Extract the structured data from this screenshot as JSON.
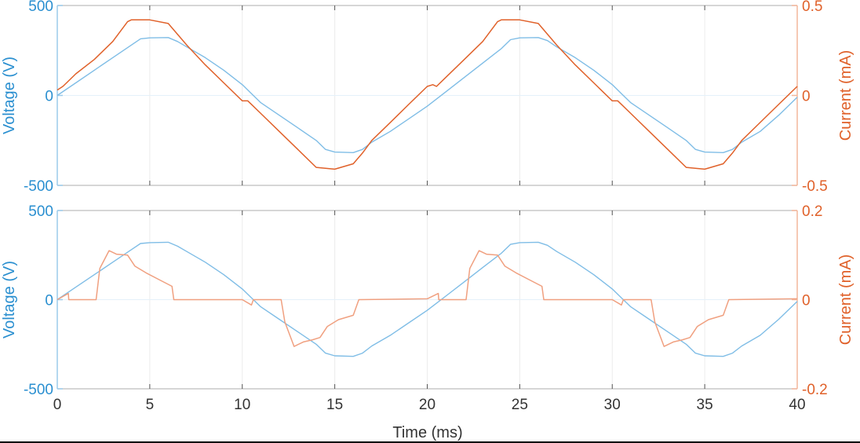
{
  "chart_data": [
    {
      "type": "line",
      "title": "",
      "xlabel": "",
      "ylabel_left": "Voltage (V)",
      "ylabel_right": "Current (mA)",
      "xlim": [
        0,
        40
      ],
      "ylim_left": [
        -500,
        500
      ],
      "ylim_right": [
        -0.5,
        0.5
      ],
      "xticks": [
        0,
        5,
        10,
        15,
        20,
        25,
        30,
        35,
        40
      ],
      "yticks_left": [
        -500,
        0,
        500
      ],
      "yticks_right": [
        -0.5,
        0,
        0.5
      ],
      "yticklabels_left": [
        "-500",
        "0",
        "500"
      ],
      "yticklabels_right": [
        "-0.5",
        "0",
        "0.5"
      ],
      "grid": true,
      "series": [
        {
          "name": "Voltage",
          "axis": "left",
          "color": "#7fbde6",
          "x": [
            0,
            1,
            2,
            3,
            4,
            4.5,
            5,
            6,
            6.5,
            7,
            8,
            9,
            10,
            10.5,
            11,
            12,
            13,
            14,
            14.5,
            15,
            16,
            16.5,
            17,
            18,
            19,
            20,
            21,
            22,
            23,
            24,
            24.5,
            25,
            26,
            26.5,
            27,
            28,
            29,
            30,
            30.5,
            31,
            32,
            33,
            34,
            34.5,
            35,
            36,
            36.5,
            37,
            38,
            39,
            40
          ],
          "values": [
            0,
            70,
            140,
            210,
            280,
            315,
            320,
            322,
            300,
            270,
            210,
            140,
            60,
            10,
            -40,
            -110,
            -180,
            -250,
            -300,
            -315,
            -318,
            -300,
            -260,
            -200,
            -130,
            -60,
            20,
            100,
            180,
            260,
            310,
            320,
            322,
            305,
            270,
            210,
            140,
            60,
            10,
            -40,
            -110,
            -180,
            -250,
            -300,
            -315,
            -318,
            -300,
            -260,
            -200,
            -110,
            -10
          ]
        },
        {
          "name": "Current",
          "axis": "right",
          "color": "#e0612a",
          "x": [
            0,
            0.3,
            0.5,
            1,
            2,
            3,
            3.8,
            4,
            5,
            6,
            7,
            8,
            9,
            10,
            10.3,
            10.5,
            11,
            12,
            13,
            14,
            15,
            16,
            16.5,
            17,
            18,
            19,
            20,
            20.3,
            20.5,
            21,
            22,
            23,
            23.8,
            24,
            25,
            26,
            27,
            28,
            29,
            30,
            30.3,
            30.5,
            31,
            32,
            33,
            34,
            35,
            36,
            36.5,
            37,
            38,
            39,
            40
          ],
          "values": [
            0.03,
            0.05,
            0.07,
            0.12,
            0.2,
            0.3,
            0.41,
            0.42,
            0.42,
            0.4,
            0.28,
            0.17,
            0.07,
            -0.03,
            -0.03,
            -0.05,
            -0.1,
            -0.2,
            -0.3,
            -0.4,
            -0.41,
            -0.38,
            -0.32,
            -0.25,
            -0.15,
            -0.05,
            0.05,
            0.06,
            0.05,
            0.1,
            0.2,
            0.3,
            0.41,
            0.42,
            0.42,
            0.4,
            0.28,
            0.17,
            0.07,
            -0.03,
            -0.03,
            -0.05,
            -0.1,
            -0.2,
            -0.3,
            -0.4,
            -0.41,
            -0.38,
            -0.32,
            -0.25,
            -0.15,
            -0.05,
            0.05
          ]
        }
      ]
    },
    {
      "type": "line",
      "title": "",
      "xlabel": "Time (ms)",
      "ylabel_left": "Voltage (V)",
      "ylabel_right": "Current (mA)",
      "xlim": [
        0,
        40
      ],
      "ylim_left": [
        -500,
        500
      ],
      "ylim_right": [
        -0.2,
        0.2
      ],
      "xticks": [
        0,
        5,
        10,
        15,
        20,
        25,
        30,
        35,
        40
      ],
      "xticklabels": [
        "0",
        "5",
        "10",
        "15",
        "20",
        "25",
        "30",
        "35",
        "40"
      ],
      "yticks_left": [
        -500,
        0,
        500
      ],
      "yticks_right": [
        -0.2,
        0,
        0.2
      ],
      "yticklabels_left": [
        "-500",
        "0",
        "500"
      ],
      "yticklabels_right": [
        "-0.2",
        "0",
        "0.2"
      ],
      "grid": true,
      "series": [
        {
          "name": "Voltage",
          "axis": "left",
          "color": "#7fbde6",
          "x": [
            0,
            1,
            2,
            3,
            4,
            4.5,
            5,
            6,
            6.5,
            7,
            8,
            9,
            10,
            10.5,
            11,
            12,
            13,
            14,
            14.5,
            15,
            16,
            16.5,
            17,
            18,
            19,
            20,
            21,
            22,
            23,
            24,
            24.5,
            25,
            26,
            26.5,
            27,
            28,
            29,
            30,
            30.5,
            31,
            32,
            33,
            34,
            34.5,
            35,
            36,
            36.5,
            37,
            38,
            39,
            40
          ],
          "values": [
            0,
            70,
            140,
            210,
            280,
            315,
            320,
            322,
            300,
            270,
            210,
            140,
            60,
            10,
            -40,
            -110,
            -180,
            -250,
            -300,
            -315,
            -318,
            -300,
            -260,
            -200,
            -130,
            -60,
            20,
            100,
            180,
            260,
            310,
            320,
            322,
            305,
            270,
            210,
            140,
            60,
            10,
            -40,
            -110,
            -180,
            -250,
            -300,
            -315,
            -318,
            -300,
            -260,
            -200,
            -110,
            -10
          ]
        },
        {
          "name": "Current",
          "axis": "right",
          "color": "#f0a080",
          "x": [
            0,
            0.6,
            0.62,
            2.1,
            2.3,
            2.8,
            3.2,
            3.8,
            4.2,
            4.8,
            5.5,
            6.2,
            6.3,
            10,
            10.5,
            10.6,
            12.1,
            12.3,
            12.8,
            13.3,
            13.8,
            14.2,
            14.6,
            15.2,
            16,
            16.3,
            20,
            20.6,
            20.62,
            22.1,
            22.3,
            22.8,
            23.2,
            23.8,
            24.2,
            24.8,
            25.5,
            26.2,
            26.3,
            30,
            30.5,
            30.6,
            32.1,
            32.3,
            32.8,
            33.3,
            33.8,
            34.2,
            34.6,
            35.2,
            36,
            36.3,
            40
          ],
          "values": [
            0,
            0.014,
            0,
            0,
            0.07,
            0.11,
            0.102,
            0.1,
            0.075,
            0.06,
            0.045,
            0.03,
            0,
            0,
            -0.012,
            0,
            0,
            -0.05,
            -0.105,
            -0.095,
            -0.09,
            -0.085,
            -0.06,
            -0.045,
            -0.035,
            0,
            0.002,
            0.014,
            0,
            0,
            0.07,
            0.11,
            0.102,
            0.1,
            0.075,
            0.06,
            0.045,
            0.03,
            0,
            0,
            -0.012,
            0,
            0,
            -0.05,
            -0.105,
            -0.095,
            -0.09,
            -0.085,
            -0.06,
            -0.045,
            -0.035,
            0,
            0.002
          ]
        }
      ]
    }
  ],
  "colors": {
    "voltage_axis": "#2a8fd0",
    "current_axis": "#e0612a",
    "voltage_line": "#7fbde6",
    "current_line_top": "#e0612a",
    "current_line_bottom": "#f0a080",
    "box": "#bdbdbd",
    "grid": "#ececec",
    "tick_text": "#333333"
  }
}
